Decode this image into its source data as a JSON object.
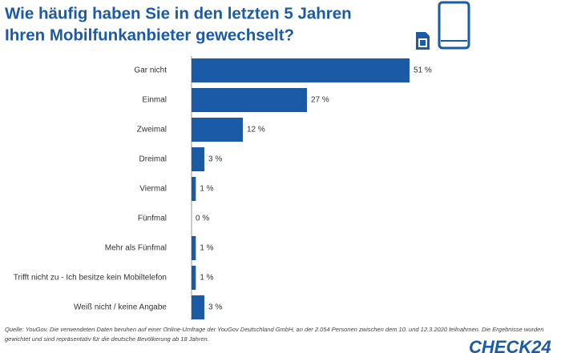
{
  "chart_data": {
    "type": "bar",
    "orientation": "horizontal",
    "title_lines": [
      "Wie häufig haben Sie in den letzten 5 Jahren",
      "Ihren Mobilfunkanbieter gewechselt?"
    ],
    "categories": [
      "Gar nicht",
      "Einmal",
      "Zweimal",
      "Dreimal",
      "Viermal",
      "Fünfmal",
      "Mehr als Fünfmal",
      "Trifft nicht zu - Ich besitze kein Mobiltelefon",
      "Weiß nicht / keine Angabe"
    ],
    "values": [
      51,
      27,
      12,
      3,
      1,
      0,
      1,
      1,
      3
    ],
    "value_labels": [
      "51 %",
      "27 %",
      "12 %",
      "3 %",
      "1 %",
      "0 %",
      "1 %",
      "1 %",
      "3 %"
    ],
    "color": "#1b5aa6",
    "source_lines": [
      "Quelle: YouGov. Die verwendeten Daten beruhen auf einer Online-Umfrage der YouGov Deutschland GmbH, an der 2.054 Personen zwischen dem 10. und 12.3.2020 teilnahmen. Die Ergebnisse wurden",
      "gewichtet und sind repräsentativ für die deutsche Bevölkerung ab 18 Jahren."
    ],
    "logo": "CHECK24"
  }
}
